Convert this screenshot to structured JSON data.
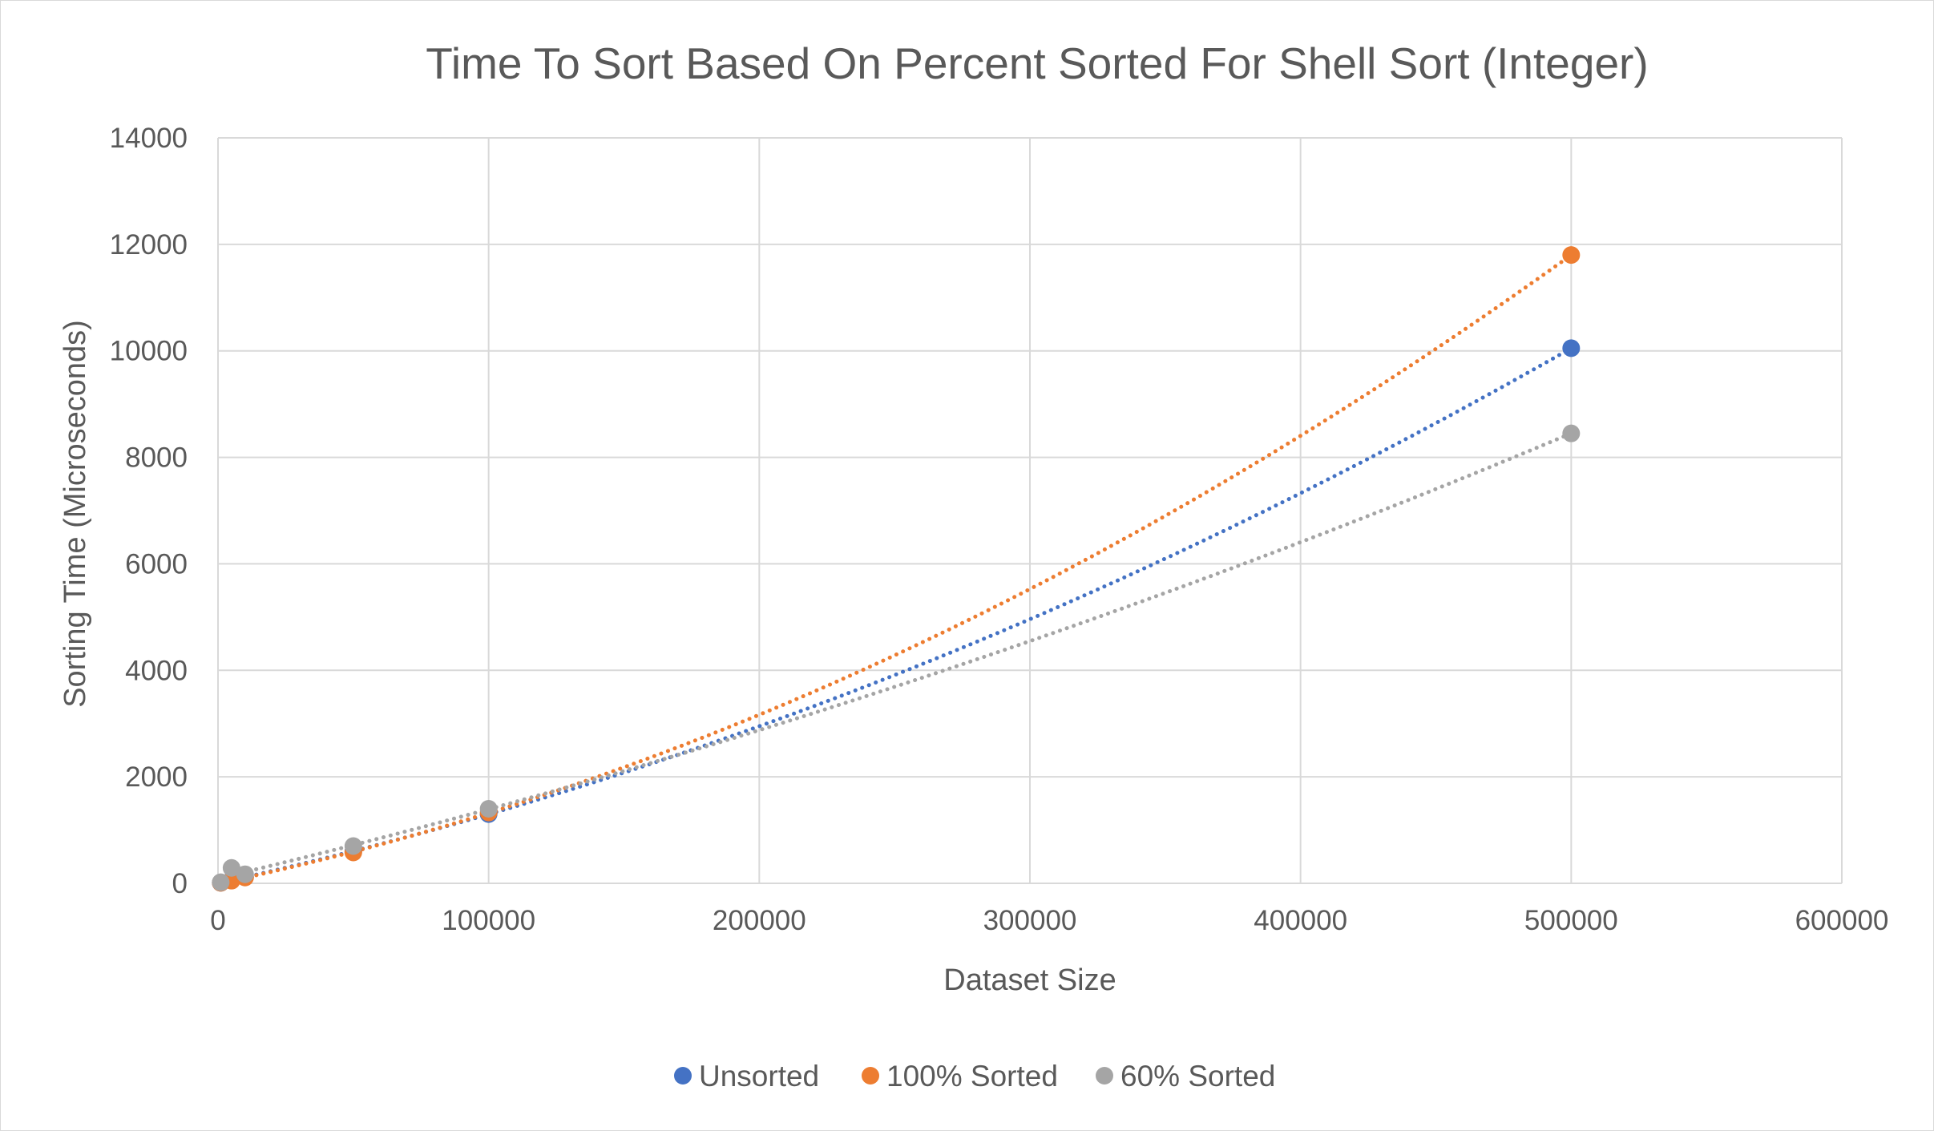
{
  "chart_data": {
    "type": "scatter",
    "title": "Time To Sort Based On Percent Sorted For Shell Sort (Integer)",
    "xlabel": "Dataset Size",
    "ylabel": "Sorting Time (Microseconds)",
    "xlim": [
      0,
      600000
    ],
    "ylim": [
      0,
      14000
    ],
    "x_ticks": [
      "0",
      "100000",
      "200000",
      "300000",
      "400000",
      "500000",
      "600000"
    ],
    "y_ticks": [
      "0",
      "2000",
      "4000",
      "6000",
      "8000",
      "10000",
      "12000",
      "14000"
    ],
    "grid": true,
    "legend_position": "bottom",
    "trendline": "polynomial (dotted)",
    "series": [
      {
        "name": "Unsorted",
        "color": "#4472C4",
        "points": [
          {
            "x": 1000,
            "y": 10
          },
          {
            "x": 5000,
            "y": 60
          },
          {
            "x": 10000,
            "y": 120
          },
          {
            "x": 50000,
            "y": 600
          },
          {
            "x": 100000,
            "y": 1300
          },
          {
            "x": 500000,
            "y": 10050
          }
        ]
      },
      {
        "name": "100% Sorted",
        "color": "#ED7D31",
        "points": [
          {
            "x": 1000,
            "y": 10
          },
          {
            "x": 5000,
            "y": 50
          },
          {
            "x": 10000,
            "y": 110
          },
          {
            "x": 50000,
            "y": 580
          },
          {
            "x": 100000,
            "y": 1330
          },
          {
            "x": 500000,
            "y": 11800
          }
        ]
      },
      {
        "name": "60% Sorted",
        "color": "#A5A5A5",
        "points": [
          {
            "x": 1000,
            "y": 20
          },
          {
            "x": 5000,
            "y": 290
          },
          {
            "x": 10000,
            "y": 170
          },
          {
            "x": 50000,
            "y": 700
          },
          {
            "x": 100000,
            "y": 1400
          },
          {
            "x": 500000,
            "y": 8450
          }
        ]
      }
    ]
  }
}
